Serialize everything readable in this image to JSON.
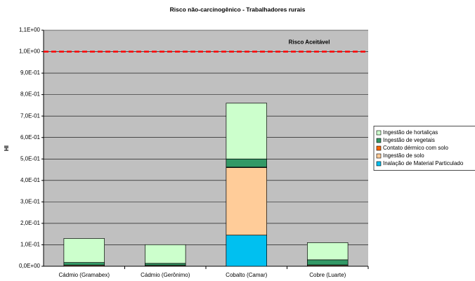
{
  "chart_data": {
    "type": "bar",
    "stacked": true,
    "title": "Risco não-carcinogênico - Trabalhadores rurais",
    "ylabel": "HI",
    "categories": [
      "Cádmio (Gramabex)",
      "Cádmio (Gerônimo)",
      "Cobalto (Camar)",
      "Cobre (Luarte)"
    ],
    "series": [
      {
        "name": "Inalação de Material Particulado",
        "color": "#00c0f0",
        "values": [
          0.001,
          0.001,
          0.145,
          0.001
        ]
      },
      {
        "name": "Ingestão de solo",
        "color": "#ffcc99",
        "values": [
          0.004,
          0.003,
          0.315,
          0.004
        ]
      },
      {
        "name": "Contato dérmico com solo",
        "color": "#ff6600",
        "values": [
          0.0005,
          0.0005,
          0.002,
          0.001
        ]
      },
      {
        "name": "Ingestão de vegetais",
        "color": "#339966",
        "values": [
          0.012,
          0.009,
          0.038,
          0.024
        ]
      },
      {
        "name": "Ingestão de hortaliças",
        "color": "#ccffcc",
        "values": [
          0.112,
          0.087,
          0.26,
          0.08
        ]
      }
    ],
    "ylim": [
      0,
      1.1
    ],
    "yticks": [
      {
        "value": 0,
        "label": "0,0E+00"
      },
      {
        "value": 0.1,
        "label": "1,0E-01"
      },
      {
        "value": 0.2,
        "label": "2,0E-01"
      },
      {
        "value": 0.3,
        "label": "3,0E-01"
      },
      {
        "value": 0.4,
        "label": "4,0E-01"
      },
      {
        "value": 0.5,
        "label": "5,0E-01"
      },
      {
        "value": 0.6,
        "label": "6,0E-01"
      },
      {
        "value": 0.7,
        "label": "7,0E-01"
      },
      {
        "value": 0.8,
        "label": "8,0E-01"
      },
      {
        "value": 0.9,
        "label": "9,0E-01"
      },
      {
        "value": 1.0,
        "label": "1,0E+00"
      },
      {
        "value": 1.1,
        "label": "1,1E+00"
      }
    ],
    "grid": true,
    "reference": {
      "value": 1.0,
      "label": "Risco Aceitável",
      "color": "#ff0000"
    },
    "legend": "right"
  }
}
